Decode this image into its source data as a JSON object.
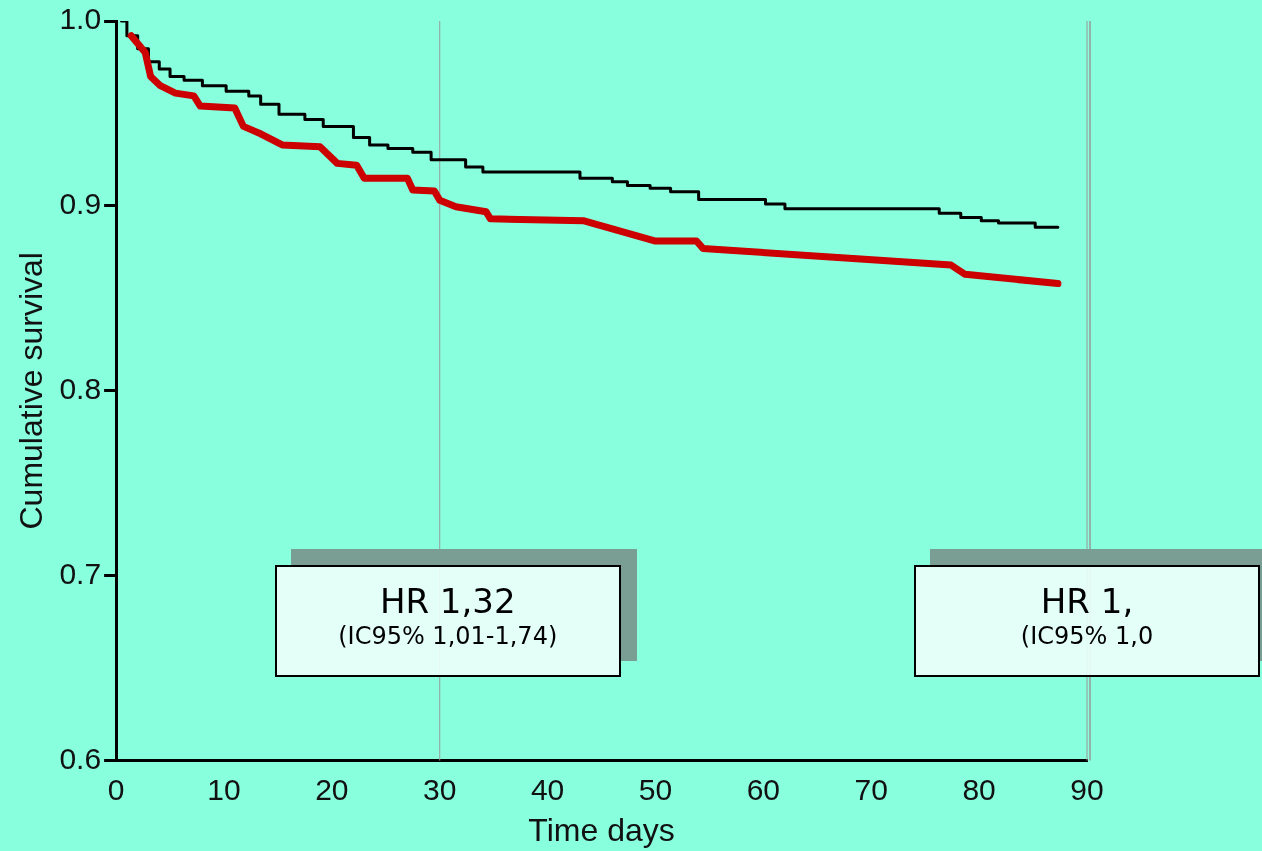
{
  "chart_data": {
    "type": "line",
    "xlabel": "Time days",
    "ylabel": "Cumulative survival",
    "xlim": [
      0,
      90
    ],
    "xticks": [
      0,
      10,
      20,
      30,
      40,
      50,
      60,
      70,
      80,
      90
    ],
    "ylim": [
      0.6,
      1.0
    ],
    "yticks": [
      {
        "value": 0.6,
        "label": "0.6"
      },
      {
        "value": 0.7,
        "label": "0.7"
      },
      {
        "value": 0.8,
        "label": "0.8"
      },
      {
        "value": 0.9,
        "label": "0.9"
      },
      {
        "value": 1.0,
        "label": "1.0"
      }
    ],
    "grid": false,
    "legend": false,
    "marker": "none",
    "series": [
      {
        "type": "step",
        "color": "#000000",
        "x": [
          0.5,
          1,
          2,
          3,
          4,
          5,
          6.3,
          8,
          10.2,
          12.3,
          13.4,
          15.1,
          17.5,
          19.2,
          22,
          23.5,
          25.2,
          27.5,
          29.2,
          32.4,
          34,
          43,
          46,
          47.4,
          49.5,
          51.4,
          54,
          60.2,
          62,
          76.3,
          78.3,
          80.2,
          81.8,
          85.2,
          87.3
        ],
        "values": [
          1.0,
          0.992,
          0.985,
          0.978,
          0.974,
          0.97,
          0.968,
          0.965,
          0.962,
          0.9595,
          0.955,
          0.9495,
          0.9467,
          0.943,
          0.937,
          0.933,
          0.931,
          0.929,
          0.925,
          0.921,
          0.9184,
          0.915,
          0.913,
          0.911,
          0.9095,
          0.9076,
          0.9035,
          0.901,
          0.8985,
          0.896,
          0.8937,
          0.892,
          0.8907,
          0.8885,
          0.8885
        ]
      },
      {
        "type": "line",
        "color": "#cc0000",
        "x": [
          1.4,
          2.7,
          3.2,
          4.1,
          5.5,
          7.2,
          7.8,
          11,
          11.8,
          13.4,
          15.4,
          18.9,
          20.5,
          22.3,
          23,
          27,
          27.5,
          29.5,
          30,
          31.5,
          34.3,
          34.7,
          43.3,
          50,
          53.8,
          54.4,
          77.4,
          78.7,
          87.3
        ],
        "values": [
          0.992,
          0.983,
          0.97,
          0.965,
          0.961,
          0.9595,
          0.954,
          0.953,
          0.943,
          0.939,
          0.933,
          0.932,
          0.923,
          0.922,
          0.915,
          0.915,
          0.9086,
          0.908,
          0.903,
          0.8995,
          0.8968,
          0.893,
          0.892,
          0.881,
          0.881,
          0.877,
          0.868,
          0.863,
          0.858
        ]
      }
    ],
    "ref_lines": [
      {
        "axis": "x",
        "value": 30,
        "color": "#999999"
      },
      {
        "axis": "x",
        "value": 90,
        "color": "#999999"
      }
    ],
    "annotations": [
      "HR 1,32",
      "(IC95% 1,01-1,74)",
      "HR 1,",
      "(IC95% 1,0"
    ]
  }
}
